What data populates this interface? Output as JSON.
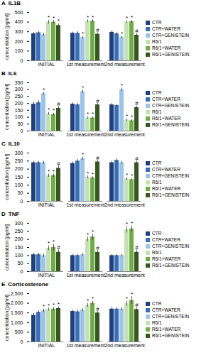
{
  "chart_data": [
    {
      "type": "bar",
      "panel": "A",
      "title": "IL1B",
      "ylabel": "concentration [pg/ml]",
      "legend": "right",
      "categories": [
        "INITIAL",
        "1st measurement",
        "2nd measurement"
      ],
      "ylim": [
        0,
        500
      ],
      "yticks": [
        0,
        100,
        200,
        300,
        400,
        500
      ],
      "series": [
        {
          "name": "CTR",
          "color": "#1f3f7f",
          "values": [
            280,
            285,
            295
          ],
          "errors": [
            15,
            12,
            15
          ],
          "annotations": [
            null,
            null,
            null
          ]
        },
        {
          "name": "CTR+WATER",
          "color": "#3a6fb5",
          "values": [
            290,
            285,
            280
          ],
          "errors": [
            15,
            15,
            12
          ],
          "annotations": [
            null,
            null,
            null
          ]
        },
        {
          "name": "CTR+GENISTEIN",
          "color": "#9dc3e6",
          "values": [
            270,
            240,
            245
          ],
          "errors": [
            15,
            12,
            12
          ],
          "annotations": [
            null,
            "*",
            "*"
          ]
        },
        {
          "name": "R6/1",
          "color": "#c5e0b4",
          "values": [
            400,
            410,
            400
          ],
          "errors": [
            20,
            15,
            15
          ],
          "annotations": [
            "*",
            "*",
            "*"
          ]
        },
        {
          "name": "R6/1+WATER",
          "color": "#70ad47",
          "values": [
            400,
            410,
            405
          ],
          "errors": [
            18,
            15,
            15
          ],
          "annotations": [
            "*",
            "*",
            "*"
          ]
        },
        {
          "name": "R6/1+GENISTEIN",
          "color": "#375623",
          "values": [
            365,
            275,
            265
          ],
          "errors": [
            18,
            15,
            15
          ],
          "annotations": [
            "*",
            "#",
            "#"
          ]
        }
      ]
    },
    {
      "type": "bar",
      "panel": "B",
      "title": "IL6",
      "ylabel": "concentration [pg/ml]",
      "legend": "right",
      "categories": [
        "INITIAL",
        "1st measurement",
        "2nd measurement"
      ],
      "ylim": [
        0,
        350
      ],
      "yticks": [
        0,
        50,
        100,
        150,
        200,
        250,
        300,
        350
      ],
      "series": [
        {
          "name": "CTR",
          "color": "#1f3f7f",
          "values": [
            195,
            195,
            190
          ],
          "errors": [
            15,
            10,
            10
          ],
          "annotations": [
            null,
            null,
            null
          ]
        },
        {
          "name": "CTR+WATER",
          "color": "#3a6fb5",
          "values": [
            205,
            190,
            185
          ],
          "errors": [
            15,
            10,
            10
          ],
          "annotations": [
            null,
            null,
            null
          ]
        },
        {
          "name": "CTR+GENISTEIN",
          "color": "#9dc3e6",
          "values": [
            270,
            285,
            300
          ],
          "errors": [
            10,
            12,
            12
          ],
          "annotations": [
            "*",
            "*",
            "*"
          ]
        },
        {
          "name": "R6/1",
          "color": "#c5e0b4",
          "values": [
            125,
            95,
            80
          ],
          "errors": [
            10,
            8,
            8
          ],
          "annotations": [
            "*",
            "*",
            "*"
          ]
        },
        {
          "name": "R6/1+WATER",
          "color": "#70ad47",
          "values": [
            120,
            95,
            75
          ],
          "errors": [
            10,
            8,
            8
          ],
          "annotations": [
            "*",
            "*",
            "*"
          ]
        },
        {
          "name": "R6/1+GENISTEIN",
          "color": "#375623",
          "values": [
            165,
            190,
            170
          ],
          "errors": [
            12,
            10,
            12
          ],
          "annotations": [
            "#",
            "#",
            "#"
          ]
        }
      ]
    },
    {
      "type": "bar",
      "panel": "C",
      "title": "IL10",
      "ylabel": "concentration [pg/ml]",
      "legend": "right",
      "categories": [
        "INITIAL",
        "1st measurement",
        "2nd measurement"
      ],
      "ylim": [
        0,
        300
      ],
      "yticks": [
        0,
        50,
        100,
        150,
        200,
        250,
        300
      ],
      "series": [
        {
          "name": "CTR",
          "color": "#1f3f7f",
          "values": [
            240,
            235,
            240
          ],
          "errors": [
            10,
            10,
            10
          ],
          "annotations": [
            null,
            null,
            null
          ]
        },
        {
          "name": "CTR+WATER",
          "color": "#3a6fb5",
          "values": [
            240,
            250,
            255
          ],
          "errors": [
            10,
            10,
            10
          ],
          "annotations": [
            null,
            null,
            null
          ]
        },
        {
          "name": "CTR+GENISTEIN",
          "color": "#9dc3e6",
          "values": [
            240,
            265,
            240
          ],
          "errors": [
            10,
            10,
            10
          ],
          "annotations": [
            null,
            "*",
            null
          ]
        },
        {
          "name": "R6/1",
          "color": "#c5e0b4",
          "values": [
            160,
            150,
            140
          ],
          "errors": [
            10,
            8,
            8
          ],
          "annotations": [
            "*",
            "*",
            "*"
          ]
        },
        {
          "name": "R6/1+WATER",
          "color": "#70ad47",
          "values": [
            160,
            145,
            135
          ],
          "errors": [
            10,
            8,
            8
          ],
          "annotations": [
            "*",
            "*",
            "*"
          ]
        },
        {
          "name": "R6/1+GENISTEIN",
          "color": "#375623",
          "values": [
            205,
            245,
            240
          ],
          "errors": [
            15,
            10,
            10
          ],
          "annotations": [
            "#",
            "#",
            "#"
          ]
        }
      ]
    },
    {
      "type": "bar",
      "panel": "D",
      "title": "TNF",
      "ylabel": "concentration [pg/ml]",
      "legend": "right",
      "categories": [
        "INITIAL",
        "1st measurement",
        "2nd measurement"
      ],
      "ylim": [
        0,
        300
      ],
      "yticks": [
        0,
        50,
        100,
        150,
        200,
        250,
        300
      ],
      "series": [
        {
          "name": "CTR",
          "color": "#1f3f7f",
          "values": [
            105,
            100,
            100
          ],
          "errors": [
            10,
            8,
            8
          ],
          "annotations": [
            null,
            null,
            null
          ]
        },
        {
          "name": "CTR+WATER",
          "color": "#3a6fb5",
          "values": [
            105,
            100,
            100
          ],
          "errors": [
            10,
            8,
            8
          ],
          "annotations": [
            null,
            null,
            null
          ]
        },
        {
          "name": "CTR+GENISTEIN",
          "color": "#9dc3e6",
          "values": [
            100,
            105,
            100
          ],
          "errors": [
            10,
            8,
            8
          ],
          "annotations": [
            null,
            null,
            null
          ]
        },
        {
          "name": "R6/1",
          "color": "#c5e0b4",
          "values": [
            145,
            200,
            260
          ],
          "errors": [
            15,
            15,
            20
          ],
          "annotations": [
            "*",
            "*",
            "*"
          ]
        },
        {
          "name": "R6/1+WATER",
          "color": "#70ad47",
          "values": [
            150,
            215,
            265
          ],
          "errors": [
            20,
            18,
            20
          ],
          "annotations": [
            "*",
            "*",
            "*"
          ]
        },
        {
          "name": "R6/1+GENISTEIN",
          "color": "#375623",
          "values": [
            120,
            120,
            120
          ],
          "errors": [
            15,
            12,
            15
          ],
          "annotations": [
            "#",
            "#",
            "#"
          ]
        }
      ]
    },
    {
      "type": "bar",
      "panel": "E",
      "title": "Corticosterone",
      "ylabel": "concentration [pg/ml]",
      "legend": "right",
      "categories": [
        "INITIAL",
        "1st measurement",
        "2nd measurement"
      ],
      "ylim": [
        0,
        2500
      ],
      "yticks": [
        0,
        500,
        1000,
        1500,
        2000,
        2500
      ],
      "series": [
        {
          "name": "CTR",
          "color": "#1f3f7f",
          "values": [
            1380,
            1580,
            1700
          ],
          "errors": [
            100,
            80,
            100
          ],
          "annotations": [
            null,
            null,
            null
          ]
        },
        {
          "name": "CTR+WATER",
          "color": "#3a6fb5",
          "values": [
            1530,
            1560,
            1700
          ],
          "errors": [
            80,
            80,
            80
          ],
          "annotations": [
            null,
            null,
            null
          ]
        },
        {
          "name": "CTR+GENISTEIN",
          "color": "#9dc3e6",
          "values": [
            1620,
            1650,
            1700
          ],
          "errors": [
            80,
            80,
            80
          ],
          "annotations": [
            "*",
            null,
            null
          ]
        },
        {
          "name": "R6/1",
          "color": "#c5e0b4",
          "values": [
            1680,
            1900,
            1980
          ],
          "errors": [
            80,
            100,
            120
          ],
          "annotations": [
            "*",
            "*",
            "*"
          ]
        },
        {
          "name": "R6/1+WATER",
          "color": "#70ad47",
          "values": [
            1700,
            2000,
            2150
          ],
          "errors": [
            80,
            100,
            200
          ],
          "annotations": [
            "*",
            "*",
            "*"
          ]
        },
        {
          "name": "R6/1+GENISTEIN",
          "color": "#375623",
          "values": [
            1730,
            1500,
            1680
          ],
          "errors": [
            80,
            80,
            100
          ],
          "annotations": [
            "*",
            "#",
            "#"
          ]
        }
      ]
    }
  ]
}
